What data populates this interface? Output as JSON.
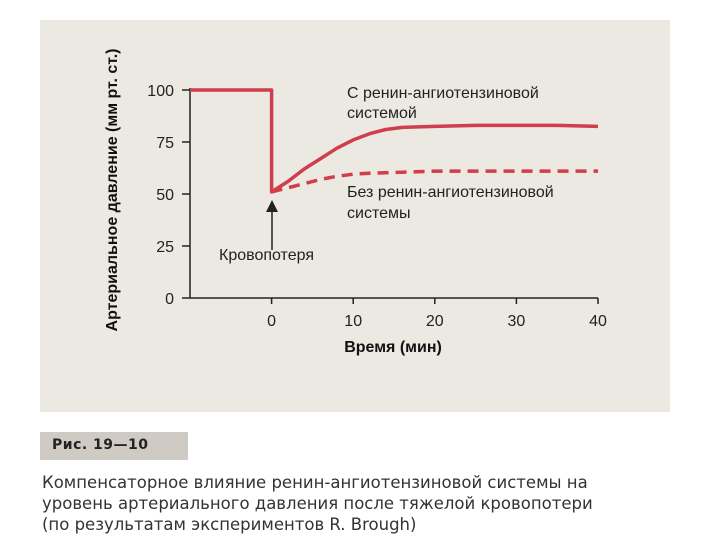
{
  "chart_data": {
    "type": "line",
    "xlabel": "Время (мин)",
    "ylabel": "Артериальное давление (мм рт. ст.)",
    "xlim": [
      -10,
      40
    ],
    "ylim": [
      0,
      100
    ],
    "x_ticks": [
      "0",
      "10",
      "20",
      "30",
      "40"
    ],
    "y_ticks": [
      "100",
      "75",
      "50",
      "25",
      "0"
    ],
    "series": [
      {
        "name": "С ренин-ангиотензиновой системой",
        "color": "#cf3e4a",
        "style": "solid",
        "points": [
          [
            -10,
            100
          ],
          [
            0,
            100
          ],
          [
            0,
            51
          ],
          [
            2,
            56
          ],
          [
            4,
            62
          ],
          [
            6,
            67
          ],
          [
            8,
            72
          ],
          [
            10,
            76
          ],
          [
            12,
            79
          ],
          [
            14,
            81
          ],
          [
            16,
            82
          ],
          [
            20,
            82.5
          ],
          [
            25,
            83
          ],
          [
            30,
            83
          ],
          [
            35,
            83
          ],
          [
            40,
            82.5
          ]
        ]
      },
      {
        "name": "Без ренин-ангиотензиновой системы",
        "color": "#cf3e4a",
        "style": "dashed",
        "points": [
          [
            0,
            51
          ],
          [
            2,
            53
          ],
          [
            4,
            55
          ],
          [
            6,
            57
          ],
          [
            8,
            58.5
          ],
          [
            10,
            59.5
          ],
          [
            12,
            60
          ],
          [
            16,
            60.5
          ],
          [
            20,
            61
          ],
          [
            25,
            61
          ],
          [
            30,
            61
          ],
          [
            35,
            61
          ],
          [
            40,
            61
          ]
        ]
      }
    ],
    "annotations": [
      {
        "text": "Кровопотеря",
        "x": 0,
        "y": 51
      }
    ]
  },
  "labels": {
    "series_with_line1": "С ренин-ангиотензиновой",
    "series_with_line2": "системой",
    "series_without_line1": "Без ренин-ангиотензиновой",
    "series_without_line2": "системы",
    "blood_loss": "Кровопотеря"
  },
  "caption": {
    "label": "Рис. 19—10",
    "line1": "Компенсаторное влияние ренин-ангиотензиновой системы на",
    "line2": "уровень артериального давления после тяжелой кровопотери",
    "line3": "(по результатам экспериментов R. Brough)"
  }
}
